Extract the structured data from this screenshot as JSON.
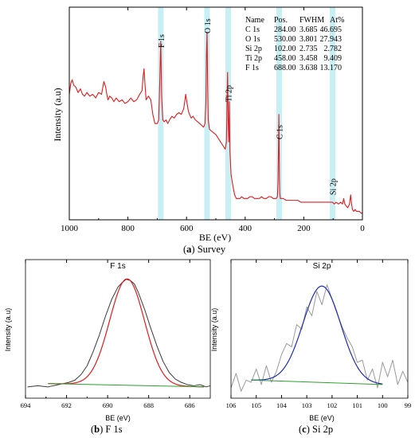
{
  "captions": {
    "a_letter": "a",
    "a_text": "Survey",
    "b_letter": "b",
    "b_text": "F 1s",
    "c_letter": "c",
    "c_text": "Si 2p"
  },
  "chart_data": [
    {
      "id": "survey",
      "type": "line",
      "xlabel": "BE (eV)",
      "ylabel": "Intensity (a.u)",
      "xlim": [
        1000,
        0
      ],
      "x_reversed": true,
      "xticks": [
        "1000",
        "800",
        "600",
        "400",
        "200",
        "0"
      ],
      "y_ticks_shown": false,
      "series": [
        {
          "color": "#e41a1c",
          "x": [
            1000,
            995,
            990,
            985,
            978,
            970,
            962,
            955,
            948,
            940,
            930,
            920,
            910,
            900,
            890,
            882,
            876,
            872,
            868,
            862,
            855,
            848,
            840,
            830,
            820,
            810,
            800,
            790,
            780,
            770,
            760,
            752,
            748,
            745,
            742,
            738,
            730,
            722,
            715,
            708,
            700,
            695,
            691,
            688,
            685,
            681,
            676,
            670,
            664,
            658,
            650,
            642,
            634,
            626,
            618,
            610,
            606,
            603,
            600,
            597,
            594,
            590,
            584,
            578,
            570,
            562,
            555,
            548,
            542,
            537,
            534,
            532,
            530,
            528,
            526,
            522,
            516,
            508,
            500,
            492,
            484,
            476,
            468,
            464,
            462,
            460,
            458,
            456,
            454,
            452,
            448,
            442,
            436,
            430,
            424,
            418,
            412,
            404,
            398,
            392,
            384,
            376,
            368,
            360,
            352,
            344,
            336,
            328,
            320,
            312,
            304,
            298,
            294,
            290,
            288,
            286,
            285,
            284,
            283,
            282,
            280,
            276,
            270,
            260,
            250,
            240,
            230,
            220,
            210,
            200,
            190,
            180,
            170,
            160,
            150,
            140,
            130,
            120,
            110,
            102,
            96,
            90,
            82,
            74,
            68,
            64,
            60,
            56,
            50,
            44,
            40,
            37,
            34,
            30,
            25,
            20,
            15,
            10,
            5,
            0
          ],
          "y": [
            0.66,
            0.72,
            0.74,
            0.71,
            0.7,
            0.67,
            0.69,
            0.66,
            0.65,
            0.67,
            0.65,
            0.66,
            0.64,
            0.67,
            0.66,
            0.73,
            0.7,
            0.66,
            0.63,
            0.65,
            0.64,
            0.62,
            0.64,
            0.62,
            0.63,
            0.61,
            0.62,
            0.64,
            0.62,
            0.63,
            0.66,
            0.68,
            0.76,
            0.8,
            0.72,
            0.63,
            0.65,
            0.63,
            0.55,
            0.5,
            0.5,
            0.52,
            0.75,
            0.95,
            0.65,
            0.52,
            0.51,
            0.52,
            0.5,
            0.52,
            0.54,
            0.53,
            0.55,
            0.56,
            0.55,
            0.58,
            0.62,
            0.66,
            0.63,
            0.6,
            0.57,
            0.55,
            0.53,
            0.54,
            0.52,
            0.51,
            0.5,
            0.49,
            0.48,
            0.5,
            0.62,
            0.88,
            1.0,
            0.7,
            0.52,
            0.47,
            0.46,
            0.45,
            0.44,
            0.42,
            0.4,
            0.38,
            0.36,
            0.4,
            0.6,
            0.78,
            0.52,
            0.4,
            0.62,
            0.35,
            0.22,
            0.16,
            0.11,
            0.09,
            0.09,
            0.09,
            0.1,
            0.09,
            0.09,
            0.09,
            0.1,
            0.1,
            0.09,
            0.09,
            0.09,
            0.1,
            0.09,
            0.09,
            0.1,
            0.1,
            0.09,
            0.09,
            0.09,
            0.1,
            0.18,
            0.4,
            0.55,
            0.38,
            0.2,
            0.12,
            0.09,
            0.09,
            0.09,
            0.08,
            0.08,
            0.08,
            0.08,
            0.08,
            0.07,
            0.07,
            0.07,
            0.07,
            0.07,
            0.07,
            0.07,
            0.07,
            0.07,
            0.07,
            0.07,
            0.07,
            0.06,
            0.07,
            0.06,
            0.07,
            0.06,
            0.09,
            0.06,
            0.05,
            0.04,
            0.06,
            0.11,
            0.06,
            0.03,
            0.02,
            0.03,
            0.02,
            0.02,
            0.02,
            0.01,
            0.01
          ]
        }
      ],
      "highlight_bands_ev": [
        688,
        530,
        458,
        284,
        102
      ],
      "highlight_color": "#c8f0f4",
      "peak_labels": [
        {
          "text": "F 1s",
          "x": 688
        },
        {
          "text": "O 1s",
          "x": 530
        },
        {
          "text": "Ti 2p",
          "x": 458
        },
        {
          "text": "C 1s",
          "x": 284
        },
        {
          "text": "Si 2p",
          "x": 102
        }
      ],
      "table": {
        "headers": [
          "Name",
          "Pos.",
          "FWHM",
          "At%"
        ],
        "rows": [
          [
            "C 1s",
            "284.00",
            "3.685",
            "46.695"
          ],
          [
            "O 1s",
            "530.00",
            "3.801",
            "27.943"
          ],
          [
            "Si 2p",
            "102.00",
            "2.735",
            "2.782"
          ],
          [
            "Ti 2p",
            "458.00",
            "3.458",
            "9.409"
          ],
          [
            "F 1s",
            "688.00",
            "3.638",
            "13.170"
          ]
        ]
      }
    },
    {
      "id": "f1s",
      "type": "line",
      "title": "F 1s",
      "xlabel": "BE (eV)",
      "ylabel": "Intensity (a.u)",
      "xlim": [
        694,
        685
      ],
      "x_reversed": true,
      "xticks": [
        "694",
        "692",
        "690",
        "688",
        "686"
      ],
      "y_ticks_shown": false,
      "series": [
        {
          "color": "#3a3a3a",
          "x": [
            693.9,
            693.4,
            692.9,
            692.4,
            691.9,
            691.6,
            691.3,
            691.0,
            690.7,
            690.4,
            690.1,
            689.8,
            689.5,
            689.3,
            689.1,
            688.9,
            688.7,
            688.5,
            688.2,
            687.9,
            687.6,
            687.3,
            687.0,
            686.7,
            686.4,
            686.1,
            685.8,
            685.5,
            685.2,
            685.0
          ],
          "y": [
            0.03,
            0.04,
            0.03,
            0.05,
            0.07,
            0.09,
            0.14,
            0.22,
            0.35,
            0.5,
            0.67,
            0.82,
            0.93,
            0.97,
            1.0,
            0.99,
            0.96,
            0.88,
            0.73,
            0.56,
            0.4,
            0.26,
            0.16,
            0.1,
            0.07,
            0.05,
            0.04,
            0.05,
            0.03,
            0.04
          ]
        },
        {
          "color": "#e41a1c",
          "fit": {
            "center": 689.05,
            "sigma": 0.85,
            "amplitude": 0.96,
            "baseline_left": 0.06,
            "baseline_right": 0.03,
            "x_from": 692.9,
            "x_to": 685.3
          }
        },
        {
          "color": "#2ca02c",
          "x": [
            692.9,
            685.3
          ],
          "y": [
            0.06,
            0.03
          ]
        }
      ]
    },
    {
      "id": "si2p",
      "type": "line",
      "title": "Si 2p",
      "xlabel": "BE (eV)",
      "ylabel": "Intensity (a.u)",
      "xlim": [
        106,
        99
      ],
      "x_reversed": true,
      "xticks": [
        "106",
        "105",
        "104",
        "103",
        "102",
        "101",
        "100",
        "99"
      ],
      "y_ticks_shown": false,
      "series": [
        {
          "color": "#9a9a9a",
          "x": [
            106.0,
            105.8,
            105.6,
            105.4,
            105.2,
            105.0,
            104.8,
            104.6,
            104.4,
            104.2,
            104.0,
            103.8,
            103.6,
            103.4,
            103.2,
            103.0,
            102.8,
            102.6,
            102.4,
            102.2,
            102.0,
            101.8,
            101.6,
            101.4,
            101.2,
            101.0,
            100.8,
            100.6,
            100.4,
            100.2,
            100.0,
            99.8,
            99.6,
            99.4,
            99.2,
            99.0
          ],
          "y": [
            0.05,
            0.18,
            0.02,
            0.12,
            0.1,
            0.22,
            0.08,
            0.25,
            0.1,
            0.2,
            0.35,
            0.45,
            0.42,
            0.62,
            0.58,
            0.78,
            0.7,
            0.92,
            0.8,
            0.98,
            0.85,
            0.72,
            0.6,
            0.5,
            0.42,
            0.28,
            0.3,
            0.12,
            0.22,
            0.05,
            0.28,
            0.15,
            0.3,
            0.08,
            0.2,
            0.1
          ]
        },
        {
          "color": "#1f2bb4",
          "fit": {
            "center": 102.4,
            "sigma": 0.75,
            "amplitude": 0.87,
            "baseline_left": 0.12,
            "baseline_right": 0.08,
            "x_from": 105.2,
            "x_to": 100.0
          }
        },
        {
          "color": "#2ca02c",
          "x": [
            105.2,
            100.0
          ],
          "y": [
            0.12,
            0.08
          ]
        }
      ]
    }
  ]
}
